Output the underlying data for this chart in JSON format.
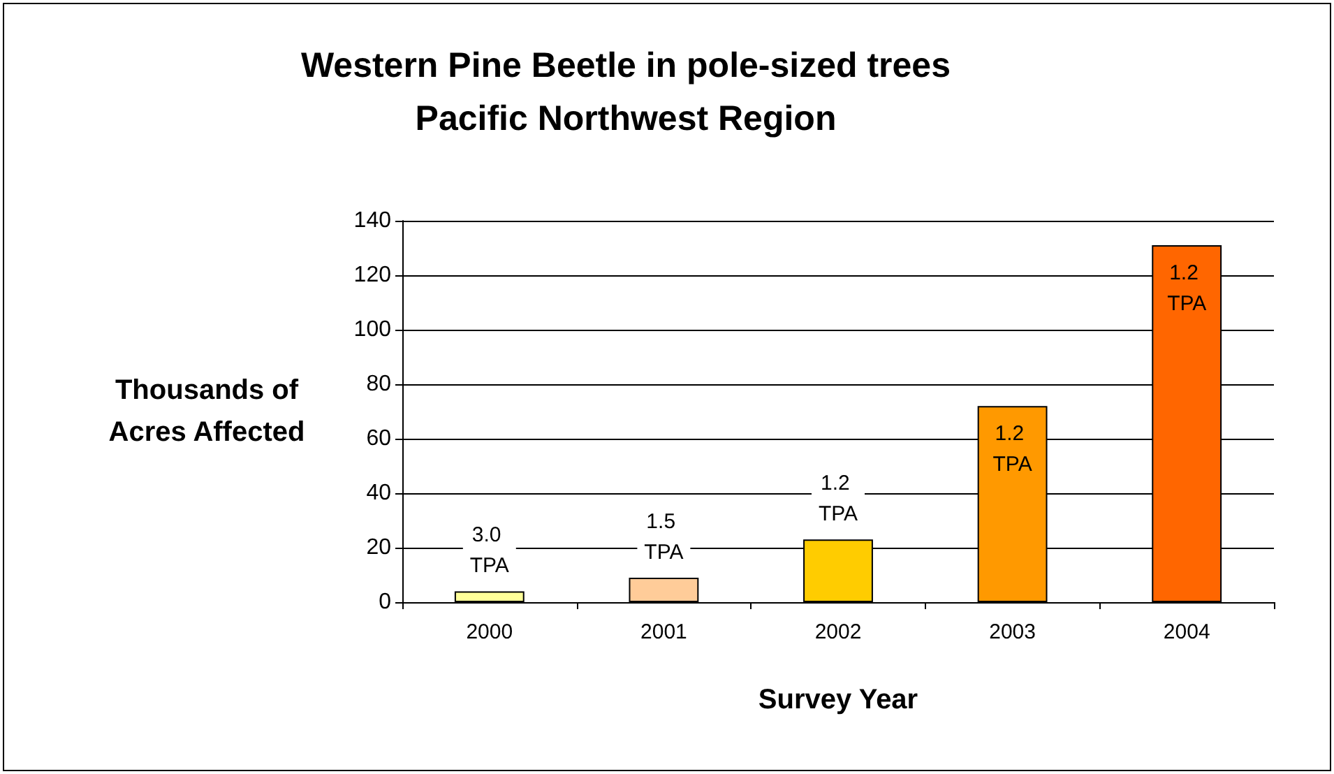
{
  "chart_data": {
    "type": "bar",
    "title": "Western Pine Beetle in pole-sized trees\nPacific Northwest Region",
    "xlabel": "Survey Year",
    "ylabel": "Thousands of\nAcres Affected",
    "categories": [
      "2000",
      "2001",
      "2002",
      "2003",
      "2004"
    ],
    "values": [
      4,
      9,
      23,
      72,
      131
    ],
    "colors": [
      "#ffff99",
      "#ffcc99",
      "#ffcc00",
      "#ff9900",
      "#ff6600"
    ],
    "ylim": [
      0,
      140
    ],
    "yticks": [
      0,
      20,
      40,
      60,
      80,
      100,
      120,
      140
    ],
    "grid": "y",
    "annotations": [
      "3.0 TPA",
      "1.5 TPA",
      "1.2 TPA",
      "1.2 TPA",
      "1.2 TPA"
    ]
  }
}
